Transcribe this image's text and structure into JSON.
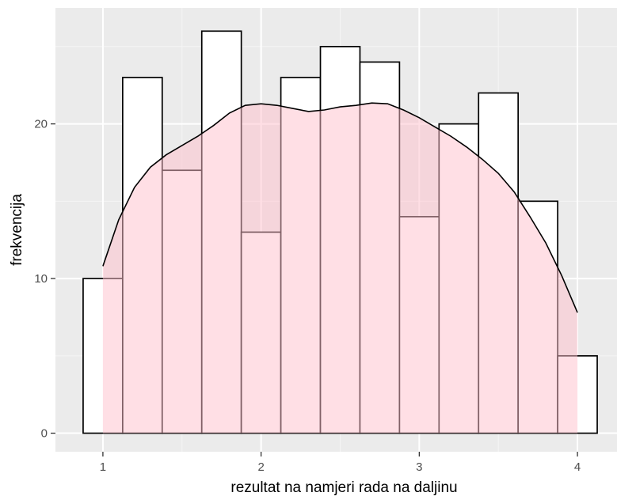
{
  "chart_data": {
    "type": "histogram",
    "title": "",
    "xlabel": "rezultat na namjeri rada na daljinu",
    "ylabel": "frekvencija",
    "xlim": [
      0.7,
      4.25
    ],
    "ylim": [
      -1.2,
      27.5
    ],
    "x_ticks": [
      1,
      2,
      3,
      4
    ],
    "x_tick_labels": [
      "1",
      "2",
      "3",
      "4"
    ],
    "y_ticks": [
      0,
      10,
      20
    ],
    "y_tick_labels": [
      "0",
      "10",
      "20"
    ],
    "grid": true,
    "legend": "none",
    "bin_width": 0.25,
    "bins": [
      {
        "xmin": 0.875,
        "xmax": 1.125,
        "count": 10
      },
      {
        "xmin": 1.125,
        "xmax": 1.375,
        "count": 23
      },
      {
        "xmin": 1.375,
        "xmax": 1.625,
        "count": 17
      },
      {
        "xmin": 1.625,
        "xmax": 1.875,
        "count": 26
      },
      {
        "xmin": 1.875,
        "xmax": 2.125,
        "count": 13
      },
      {
        "xmin": 2.125,
        "xmax": 2.375,
        "count": 23
      },
      {
        "xmin": 2.375,
        "xmax": 2.625,
        "count": 25
      },
      {
        "xmin": 2.625,
        "xmax": 2.875,
        "count": 24
      },
      {
        "xmin": 2.875,
        "xmax": 3.125,
        "count": 14
      },
      {
        "xmin": 3.125,
        "xmax": 3.375,
        "count": 20
      },
      {
        "xmin": 3.375,
        "xmax": 3.625,
        "count": 22
      },
      {
        "xmin": 3.625,
        "xmax": 3.875,
        "count": 15
      },
      {
        "xmin": 3.875,
        "xmax": 4.125,
        "count": 5
      }
    ],
    "density_curve": {
      "x": [
        1.0,
        1.1,
        1.2,
        1.3,
        1.4,
        1.5,
        1.6,
        1.7,
        1.8,
        1.9,
        2.0,
        2.1,
        2.2,
        2.3,
        2.4,
        2.5,
        2.6,
        2.7,
        2.8,
        2.9,
        3.0,
        3.1,
        3.2,
        3.3,
        3.4,
        3.5,
        3.6,
        3.7,
        3.8,
        3.9,
        4.0
      ],
      "y": [
        10.8,
        13.8,
        15.9,
        17.2,
        18.0,
        18.6,
        19.2,
        19.9,
        20.7,
        21.2,
        21.3,
        21.2,
        21.0,
        20.8,
        20.9,
        21.1,
        21.2,
        21.35,
        21.3,
        20.9,
        20.4,
        19.8,
        19.2,
        18.5,
        17.7,
        16.8,
        15.6,
        14.0,
        12.3,
        10.2,
        7.8
      ]
    },
    "colors": {
      "panel_background": "#ebebeb",
      "grid_major": "#ffffff",
      "grid_minor": "#f5f5f5",
      "bar_fill": "#ffffff",
      "bar_outline": "#000000",
      "density_fill": "#ffc0cb",
      "density_fill_opacity": 0.5,
      "density_line": "#000000",
      "tick_label": "#4d4d4d",
      "tick_mark": "#333333"
    }
  }
}
